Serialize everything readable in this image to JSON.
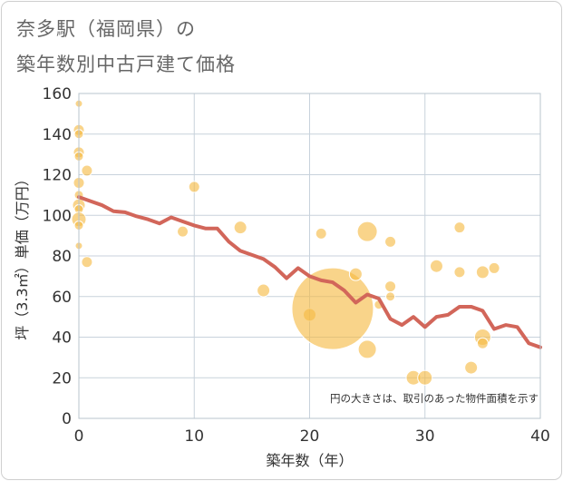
{
  "chart_data": {
    "type": "scatter",
    "title_line1": "奈多駅（福岡県）の",
    "title_line2": "築年数別中古戸建て価格",
    "xlabel": "築年数（年）",
    "ylabel": "坪（3.3㎡）単価（万円）",
    "xlim": [
      0,
      40
    ],
    "ylim": [
      0,
      160
    ],
    "x_ticks": [
      0,
      10,
      20,
      30,
      40
    ],
    "y_ticks": [
      0,
      20,
      40,
      60,
      80,
      100,
      120,
      140,
      160
    ],
    "note": "円の大きさは、取引のあった物件面積を示す",
    "colors": {
      "bubble": "#f5b942",
      "line": "#d2665a",
      "grid": "#c8d2dc",
      "plot_border": "#b9c4ce"
    },
    "bubbles": [
      {
        "x": 0,
        "y": 155,
        "size": 4
      },
      {
        "x": 0,
        "y": 142,
        "size": 6
      },
      {
        "x": 0,
        "y": 140,
        "size": 5
      },
      {
        "x": 0,
        "y": 131,
        "size": 6
      },
      {
        "x": 0,
        "y": 129,
        "size": 5
      },
      {
        "x": 0,
        "y": 116,
        "size": 6
      },
      {
        "x": 0,
        "y": 110,
        "size": 5
      },
      {
        "x": 0,
        "y": 105,
        "size": 7
      },
      {
        "x": 0,
        "y": 103,
        "size": 5
      },
      {
        "x": 0,
        "y": 98,
        "size": 8
      },
      {
        "x": 0,
        "y": 95,
        "size": 5
      },
      {
        "x": 0,
        "y": 85,
        "size": 4
      },
      {
        "x": 0.7,
        "y": 122,
        "size": 6
      },
      {
        "x": 0.7,
        "y": 77,
        "size": 6
      },
      {
        "x": 9,
        "y": 92,
        "size": 6
      },
      {
        "x": 10,
        "y": 114,
        "size": 6
      },
      {
        "x": 14,
        "y": 94,
        "size": 7
      },
      {
        "x": 16,
        "y": 63,
        "size": 7
      },
      {
        "x": 20,
        "y": 51,
        "size": 7
      },
      {
        "x": 21,
        "y": 91,
        "size": 6
      },
      {
        "x": 22,
        "y": 54,
        "size": 45
      },
      {
        "x": 24,
        "y": 71,
        "size": 7
      },
      {
        "x": 25,
        "y": 92,
        "size": 11
      },
      {
        "x": 25,
        "y": 34,
        "size": 10
      },
      {
        "x": 26,
        "y": 56,
        "size": 5
      },
      {
        "x": 27,
        "y": 87,
        "size": 6
      },
      {
        "x": 27,
        "y": 65,
        "size": 6
      },
      {
        "x": 27,
        "y": 60,
        "size": 5
      },
      {
        "x": 29,
        "y": 20,
        "size": 8
      },
      {
        "x": 30,
        "y": 20,
        "size": 8
      },
      {
        "x": 31,
        "y": 75,
        "size": 7
      },
      {
        "x": 33,
        "y": 94,
        "size": 6
      },
      {
        "x": 33,
        "y": 72,
        "size": 6
      },
      {
        "x": 34,
        "y": 25,
        "size": 7
      },
      {
        "x": 35,
        "y": 72,
        "size": 7
      },
      {
        "x": 35,
        "y": 40,
        "size": 9
      },
      {
        "x": 35,
        "y": 37,
        "size": 6
      },
      {
        "x": 36,
        "y": 74,
        "size": 6
      }
    ],
    "trend_line": {
      "x": [
        0,
        1,
        2,
        3,
        4,
        5,
        6,
        7,
        8,
        9,
        10,
        11,
        12,
        13,
        14,
        15,
        16,
        17,
        18,
        19,
        20,
        21,
        22,
        23,
        24,
        25,
        26,
        27,
        28,
        29,
        30,
        31,
        32,
        33,
        34,
        35,
        36,
        37,
        38,
        39,
        40
      ],
      "y": [
        109,
        107,
        105,
        102,
        101.5,
        99.5,
        98,
        96,
        99,
        97,
        95,
        93.5,
        93.5,
        87,
        82.5,
        80.5,
        78.5,
        74.5,
        69,
        74,
        70,
        68,
        67,
        63,
        57,
        61,
        59,
        49,
        46,
        50,
        45,
        50,
        51,
        55,
        55,
        53,
        44,
        46,
        45,
        37,
        35
      ]
    }
  }
}
